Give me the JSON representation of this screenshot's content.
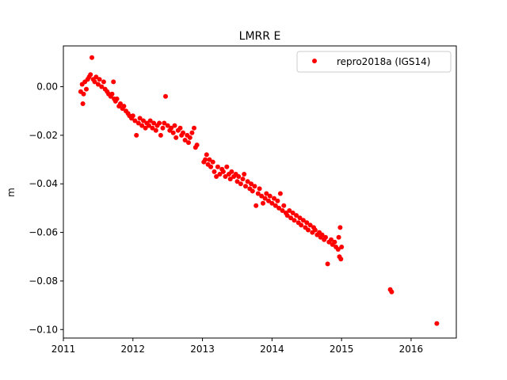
{
  "chart_data": {
    "type": "scatter",
    "title": "LMRR E",
    "xlabel": "",
    "ylabel": "m",
    "xlim": [
      2011.0,
      2016.65
    ],
    "ylim": [
      -0.1035,
      0.0168
    ],
    "x_ticks": [
      2011,
      2012,
      2013,
      2014,
      2015,
      2016
    ],
    "x_tick_labels": [
      "2011",
      "2012",
      "2013",
      "2014",
      "2015",
      "2016"
    ],
    "y_ticks": [
      0.0,
      -0.02,
      -0.04,
      -0.06,
      -0.08,
      -0.1
    ],
    "y_tick_labels": [
      "0.00",
      "−0.02",
      "−0.04",
      "−0.06",
      "−0.08",
      "−0.10"
    ],
    "grid": false,
    "legend_position": "top-right",
    "series": [
      {
        "name": "repro2018a (IGS14)",
        "color": "#ff0000",
        "marker": "circle",
        "points": [
          [
            2011.25,
            -0.002
          ],
          [
            2011.27,
            0.001
          ],
          [
            2011.29,
            -0.003
          ],
          [
            2011.31,
            0.002
          ],
          [
            2011.33,
            -0.001
          ],
          [
            2011.35,
            0.003
          ],
          [
            2011.37,
            0.004
          ],
          [
            2011.39,
            0.005
          ],
          [
            2011.41,
            0.012
          ],
          [
            2011.43,
            0.003
          ],
          [
            2011.45,
            0.002
          ],
          [
            2011.47,
            0.004
          ],
          [
            2011.5,
            0.001
          ],
          [
            2011.52,
            0.003
          ],
          [
            2011.55,
            0.0
          ],
          [
            2011.58,
            0.002
          ],
          [
            2011.6,
            -0.001
          ],
          [
            2011.63,
            -0.002
          ],
          [
            2011.65,
            -0.003
          ],
          [
            2011.68,
            -0.004
          ],
          [
            2011.7,
            -0.003
          ],
          [
            2011.73,
            -0.005
          ],
          [
            2011.75,
            -0.006
          ],
          [
            2011.77,
            -0.005
          ],
          [
            2011.28,
            -0.007
          ],
          [
            2011.72,
            0.002
          ],
          [
            2011.8,
            -0.008
          ],
          [
            2011.82,
            -0.007
          ],
          [
            2011.85,
            -0.009
          ],
          [
            2011.87,
            -0.008
          ],
          [
            2011.9,
            -0.01
          ],
          [
            2011.93,
            -0.011
          ],
          [
            2011.95,
            -0.012
          ],
          [
            2011.98,
            -0.013
          ],
          [
            2012.0,
            -0.012
          ],
          [
            2012.03,
            -0.014
          ],
          [
            2012.05,
            -0.02
          ],
          [
            2012.08,
            -0.015
          ],
          [
            2012.1,
            -0.013
          ],
          [
            2012.13,
            -0.016
          ],
          [
            2012.15,
            -0.014
          ],
          [
            2012.18,
            -0.017
          ],
          [
            2012.2,
            -0.015
          ],
          [
            2012.23,
            -0.016
          ],
          [
            2012.25,
            -0.014
          ],
          [
            2012.28,
            -0.017
          ],
          [
            2012.3,
            -0.015
          ],
          [
            2012.33,
            -0.018
          ],
          [
            2012.35,
            -0.016
          ],
          [
            2012.38,
            -0.015
          ],
          [
            2012.4,
            -0.02
          ],
          [
            2012.43,
            -0.017
          ],
          [
            2012.45,
            -0.015
          ],
          [
            2012.47,
            -0.004
          ],
          [
            2012.5,
            -0.016
          ],
          [
            2012.53,
            -0.018
          ],
          [
            2012.55,
            -0.017
          ],
          [
            2012.58,
            -0.019
          ],
          [
            2012.6,
            -0.016
          ],
          [
            2012.62,
            -0.021
          ],
          [
            2012.65,
            -0.018
          ],
          [
            2012.68,
            -0.017
          ],
          [
            2012.7,
            -0.02
          ],
          [
            2012.72,
            -0.019
          ],
          [
            2012.75,
            -0.022
          ],
          [
            2012.78,
            -0.02
          ],
          [
            2012.8,
            -0.023
          ],
          [
            2012.82,
            -0.021
          ],
          [
            2012.85,
            -0.019
          ],
          [
            2012.88,
            -0.017
          ],
          [
            2012.9,
            -0.025
          ],
          [
            2012.92,
            -0.024
          ],
          [
            2013.02,
            -0.031
          ],
          [
            2013.04,
            -0.03
          ],
          [
            2013.06,
            -0.028
          ],
          [
            2013.08,
            -0.032
          ],
          [
            2013.1,
            -0.03
          ],
          [
            2013.12,
            -0.033
          ],
          [
            2013.15,
            -0.031
          ],
          [
            2013.17,
            -0.035
          ],
          [
            2013.2,
            -0.037
          ],
          [
            2013.22,
            -0.033
          ],
          [
            2013.25,
            -0.036
          ],
          [
            2013.28,
            -0.034
          ],
          [
            2013.3,
            -0.035
          ],
          [
            2013.33,
            -0.037
          ],
          [
            2013.35,
            -0.033
          ],
          [
            2013.38,
            -0.036
          ],
          [
            2013.4,
            -0.038
          ],
          [
            2013.42,
            -0.035
          ],
          [
            2013.45,
            -0.037
          ],
          [
            2013.48,
            -0.036
          ],
          [
            2013.5,
            -0.039
          ],
          [
            2013.52,
            -0.037
          ],
          [
            2013.55,
            -0.04
          ],
          [
            2013.58,
            -0.038
          ],
          [
            2013.6,
            -0.036
          ],
          [
            2013.62,
            -0.041
          ],
          [
            2013.65,
            -0.039
          ],
          [
            2013.68,
            -0.042
          ],
          [
            2013.7,
            -0.04
          ],
          [
            2013.72,
            -0.043
          ],
          [
            2013.75,
            -0.041
          ],
          [
            2013.77,
            -0.049
          ],
          [
            2013.8,
            -0.044
          ],
          [
            2013.82,
            -0.042
          ],
          [
            2013.85,
            -0.045
          ],
          [
            2013.87,
            -0.048
          ],
          [
            2013.9,
            -0.046
          ],
          [
            2013.92,
            -0.044
          ],
          [
            2013.95,
            -0.047
          ],
          [
            2013.97,
            -0.045
          ],
          [
            2014.0,
            -0.048
          ],
          [
            2014.03,
            -0.046
          ],
          [
            2014.05,
            -0.049
          ],
          [
            2014.08,
            -0.047
          ],
          [
            2014.1,
            -0.05
          ],
          [
            2014.12,
            -0.044
          ],
          [
            2014.15,
            -0.051
          ],
          [
            2014.17,
            -0.049
          ],
          [
            2014.2,
            -0.052
          ],
          [
            2014.22,
            -0.053
          ],
          [
            2014.25,
            -0.051
          ],
          [
            2014.27,
            -0.054
          ],
          [
            2014.3,
            -0.052
          ],
          [
            2014.32,
            -0.055
          ],
          [
            2014.35,
            -0.053
          ],
          [
            2014.38,
            -0.056
          ],
          [
            2014.4,
            -0.054
          ],
          [
            2014.42,
            -0.057
          ],
          [
            2014.45,
            -0.055
          ],
          [
            2014.48,
            -0.058
          ],
          [
            2014.5,
            -0.056
          ],
          [
            2014.52,
            -0.059
          ],
          [
            2014.55,
            -0.057
          ],
          [
            2014.58,
            -0.06
          ],
          [
            2014.6,
            -0.058
          ],
          [
            2014.62,
            -0.059
          ],
          [
            2014.65,
            -0.061
          ],
          [
            2014.68,
            -0.06
          ],
          [
            2014.7,
            -0.062
          ],
          [
            2014.72,
            -0.061
          ],
          [
            2014.75,
            -0.063
          ],
          [
            2014.77,
            -0.062
          ],
          [
            2014.8,
            -0.073
          ],
          [
            2014.82,
            -0.064
          ],
          [
            2014.85,
            -0.063
          ],
          [
            2014.87,
            -0.065
          ],
          [
            2014.9,
            -0.064
          ],
          [
            2014.92,
            -0.066
          ],
          [
            2014.95,
            -0.067
          ],
          [
            2014.97,
            -0.07
          ],
          [
            2014.99,
            -0.071
          ],
          [
            2014.98,
            -0.058
          ],
          [
            2014.96,
            -0.062
          ],
          [
            2015.0,
            -0.066
          ],
          [
            2015.7,
            -0.0835
          ],
          [
            2015.72,
            -0.0845
          ],
          [
            2016.37,
            -0.0975
          ]
        ]
      }
    ]
  }
}
